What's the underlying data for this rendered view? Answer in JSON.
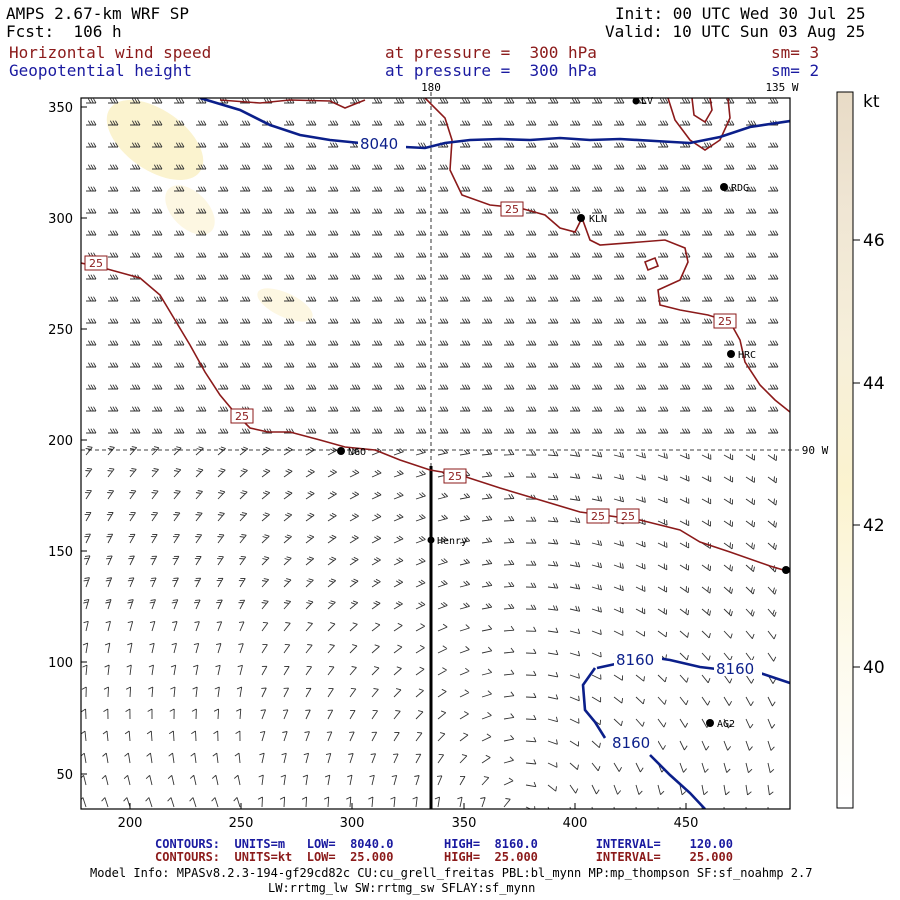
{
  "header": {
    "model": "AMPS 2.67-km WRF SP",
    "forecast": "Fcst:  106 h",
    "init": "Init: 00 UTC Wed 30 Jul 25",
    "valid": "Valid: 10 UTC Sun 03 Aug 25",
    "field1": "Horizontal wind speed",
    "field2": "Geopotential height",
    "pressure1": "at pressure =  300 hPa",
    "pressure2": "at pressure =  300 hPa",
    "sm1": "sm= 3",
    "sm2": "sm= 2"
  },
  "map": {
    "x_ticks": [
      "200",
      "250",
      "300",
      "350",
      "400",
      "450"
    ],
    "y_ticks": [
      "50",
      "100",
      "150",
      "200",
      "250",
      "300",
      "350"
    ],
    "meridian_labels": [
      "180",
      "135 W",
      "90 W"
    ],
    "stations": [
      "NGO",
      "KLN",
      "RDG",
      "HRC",
      "Henry",
      "AG2",
      "LV"
    ],
    "height_labels": [
      "8040",
      "8160",
      "8160",
      "8160"
    ],
    "speed_labels": [
      "25",
      "25",
      "25",
      "25",
      "25",
      "25",
      "25"
    ],
    "colors": {
      "height_contour": "#0b1f8a",
      "speed_contour": "#8b1a1a",
      "barb": "#333333"
    }
  },
  "colorbar": {
    "unit": "kt",
    "labels": [
      "40",
      "42",
      "44",
      "46"
    ],
    "colors": [
      "#ffffff",
      "#fdf9e8",
      "#fbf3cf",
      "#f4ecd6",
      "#ede3d0",
      "#e8dcc8"
    ]
  },
  "footer": {
    "contours_height": "CONTOURS:  UNITS=m   LOW=  8040.0       HIGH=  8160.0        INTERVAL=    120.00",
    "contours_speed": "CONTOURS:  UNITS=kt  LOW=  25.000       HIGH=  25.000        INTERVAL=    25.000",
    "model_info_1": "Model Info: MPASv8.2.3-194-gf29cd82c CU:cu_grell_freitas PBL:bl_mynn MP:mp_thompson SF:sf_noahmp 2.7",
    "model_info_2": "LW:rrtmg_lw SW:rrtmg_sw SFLAY:sf_mynn"
  }
}
